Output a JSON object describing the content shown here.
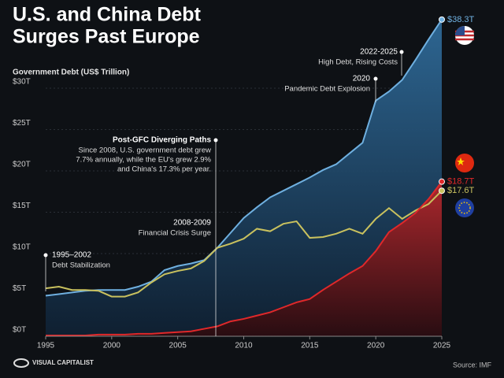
{
  "chart_data": {
    "type": "line",
    "title": [
      "U.S. and China Debt",
      "Surges Past Europe"
    ],
    "y_label": "Government Debt (US$ Trillion)",
    "source": "Source: IMF",
    "logo": "VISUAL CAPITALIST",
    "x": [
      1995,
      1996,
      1997,
      1998,
      1999,
      2000,
      2001,
      2002,
      2003,
      2004,
      2005,
      2006,
      2007,
      2008,
      2009,
      2010,
      2011,
      2012,
      2013,
      2014,
      2015,
      2016,
      2017,
      2018,
      2019,
      2020,
      2021,
      2022,
      2023,
      2024,
      2025
    ],
    "series": [
      {
        "name": "U.S.",
        "color": "#6fb0e0",
        "fill": true,
        "end_label": "$38.3T",
        "values": [
          4.9,
          5.1,
          5.3,
          5.5,
          5.6,
          5.6,
          5.6,
          6.0,
          6.6,
          8.0,
          8.5,
          8.8,
          9.2,
          10.7,
          12.5,
          14.3,
          15.6,
          16.8,
          17.6,
          18.4,
          19.2,
          20.1,
          20.8,
          22.1,
          23.4,
          28.5,
          29.6,
          31.0,
          33.4,
          35.9,
          38.3
        ]
      },
      {
        "name": "EU",
        "color": "#c9c15e",
        "fill": false,
        "end_label": "$17.6T",
        "values": [
          5.8,
          6.0,
          5.6,
          5.6,
          5.5,
          4.8,
          4.8,
          5.3,
          6.5,
          7.5,
          7.9,
          8.2,
          9.1,
          10.7,
          11.2,
          11.8,
          13.0,
          12.7,
          13.6,
          13.9,
          11.9,
          12.0,
          12.4,
          13.0,
          12.4,
          14.2,
          15.5,
          14.2,
          15.2,
          16.0,
          17.6
        ]
      },
      {
        "name": "China",
        "color": "#e0282a",
        "fill": true,
        "end_label": "$18.7T",
        "values": [
          0.1,
          0.1,
          0.1,
          0.1,
          0.2,
          0.2,
          0.2,
          0.3,
          0.3,
          0.4,
          0.5,
          0.6,
          0.9,
          1.2,
          1.8,
          2.1,
          2.5,
          2.9,
          3.5,
          4.1,
          4.5,
          5.6,
          6.6,
          7.6,
          8.5,
          10.3,
          12.6,
          13.7,
          14.9,
          16.6,
          18.7
        ]
      }
    ],
    "xlim": [
      1995,
      2025
    ],
    "ylim": [
      0,
      40
    ],
    "xticks": [
      1995,
      2000,
      2005,
      2010,
      2015,
      2020,
      2025
    ],
    "yticks": [
      {
        "value": 0,
        "label": "$0T"
      },
      {
        "value": 5,
        "label": "$5T"
      },
      {
        "value": 10,
        "label": "$10T"
      },
      {
        "value": 15,
        "label": "$15T"
      },
      {
        "value": 20,
        "label": "$20T"
      },
      {
        "value": 25,
        "label": "$25T"
      },
      {
        "value": 30,
        "label": "$30T"
      }
    ],
    "annotations": [
      {
        "title": "1995–2002",
        "lines": [
          "Debt Stabilization"
        ]
      },
      {
        "title": "Post-GFC Diverging Paths",
        "lines": [
          "Since 2008, U.S. government debt grew",
          "7.7% annually, while the EU's grew 2.9%",
          "and China's 17.3% per year."
        ]
      },
      {
        "title": "2008-2009",
        "lines": [
          "Financial Crisis Surge"
        ]
      },
      {
        "title": "2020",
        "lines": [
          "Pandemic Debt Explosion"
        ]
      },
      {
        "title": "2022-2025",
        "lines": [
          "High Debt, Rising Costs"
        ]
      }
    ]
  }
}
